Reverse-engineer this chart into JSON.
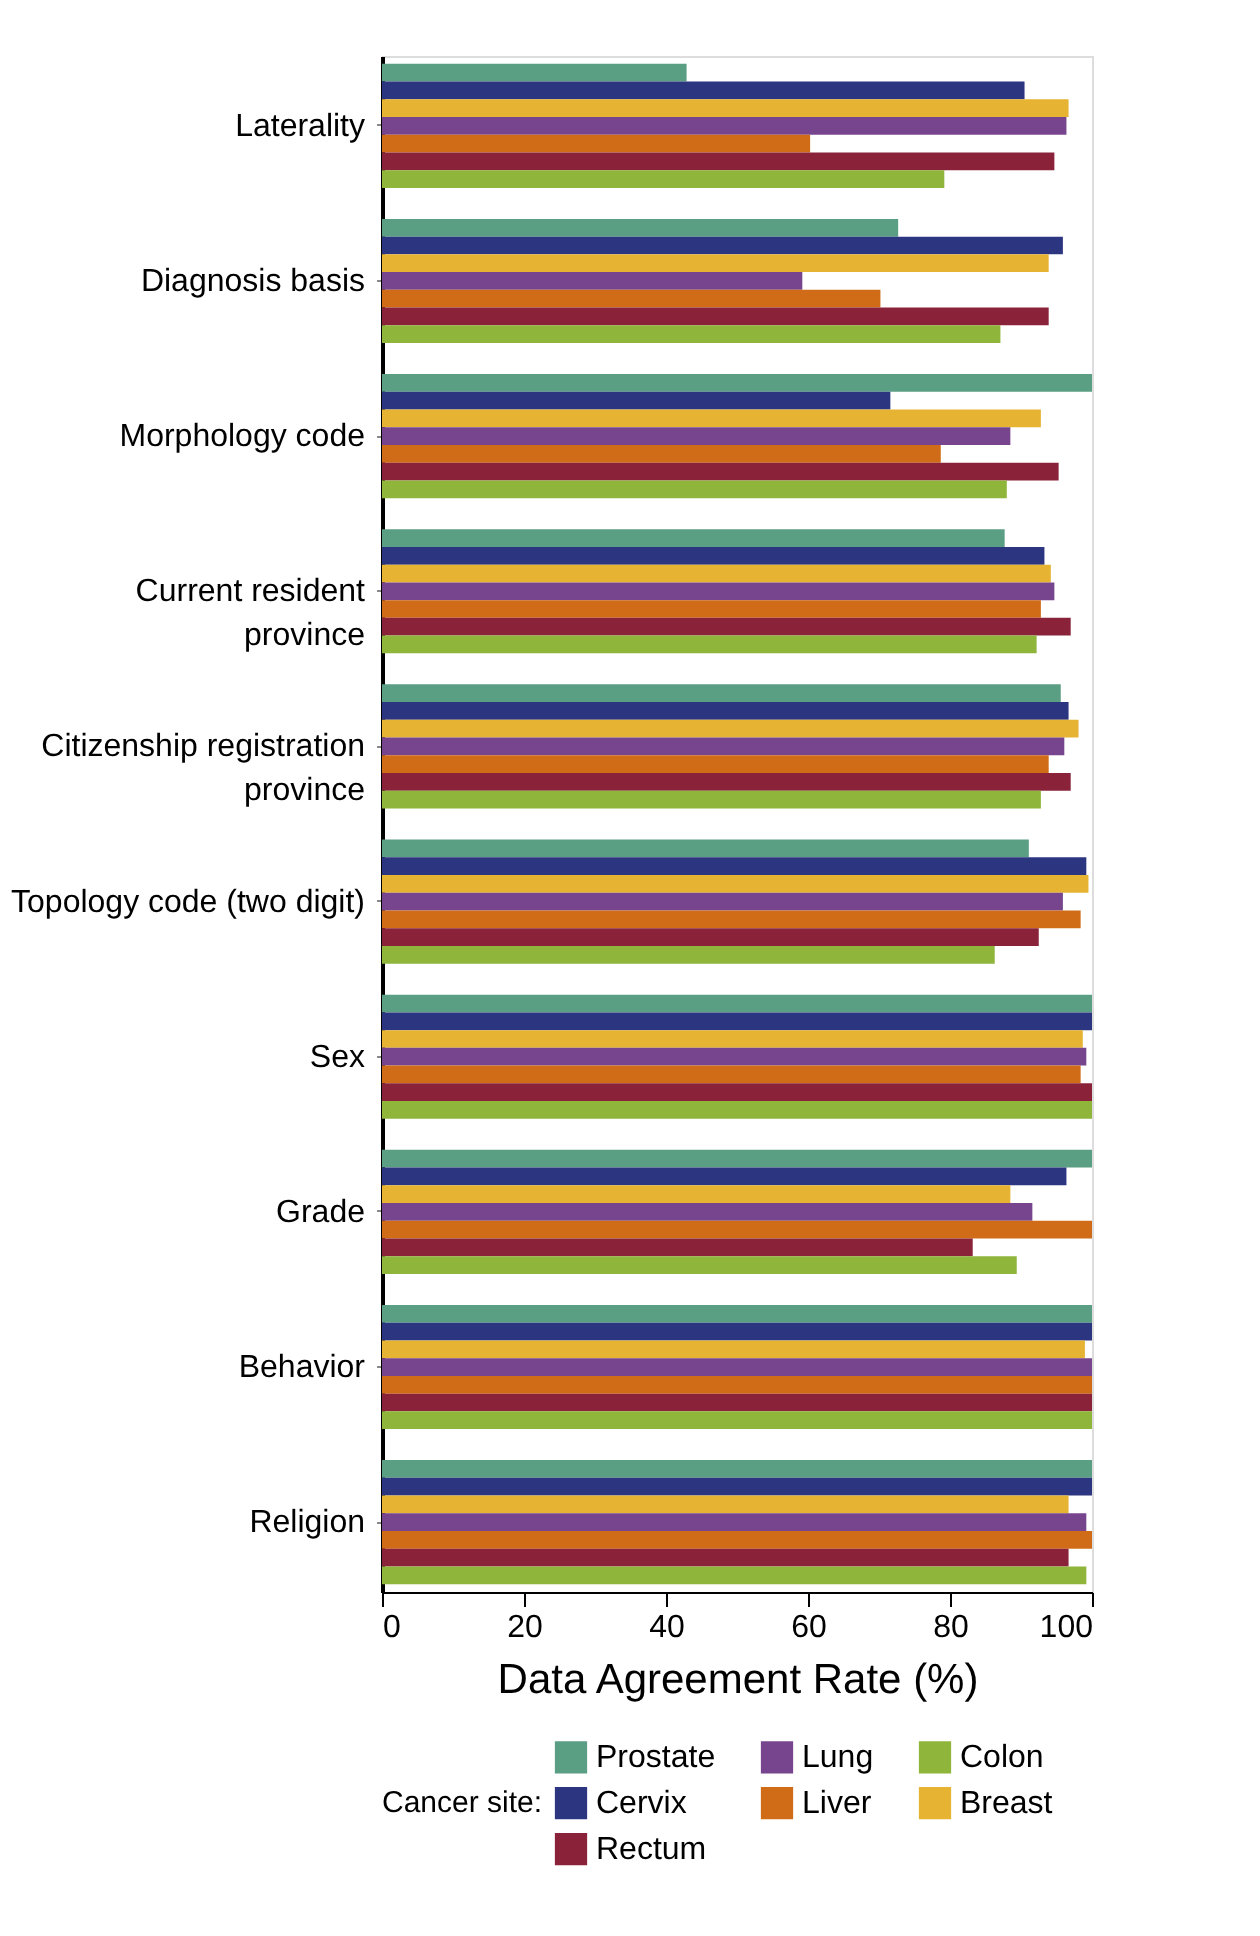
{
  "chart_data": {
    "type": "bar",
    "orientation": "horizontal",
    "xlabel": "Data Agreement Rate (%)",
    "legend_title": "Cancer site:",
    "legend": "bottom",
    "grid": false,
    "categories": [
      "Laterality",
      "Diagnosis basis",
      "Morphology code",
      "Current resident\nprovince",
      "Citizenship registration\nprovince",
      "Topology code (two digit)",
      "Sex",
      "Grade",
      "Behavior",
      "Religion"
    ],
    "xlim": [
      0,
      100
    ],
    "xticks": [
      0,
      20,
      40,
      60,
      80,
      100
    ],
    "series": [
      {
        "name": "Prostate",
        "color": "#5a9e84",
        "values": [
          42.9,
          72.7,
          100,
          87.7,
          95.6,
          91.1,
          100,
          100,
          100,
          100
        ]
      },
      {
        "name": "Cervix",
        "color": "#2c3580",
        "values": [
          90.5,
          95.9,
          71.6,
          93.3,
          96.7,
          99.2,
          100,
          96.4,
          100,
          100
        ]
      },
      {
        "name": "Breast",
        "color": "#e6b333",
        "values": [
          96.7,
          93.9,
          92.8,
          94.2,
          98.1,
          99.5,
          98.7,
          88.5,
          99.0,
          96.7
        ]
      },
      {
        "name": "Lung",
        "color": "#77448e",
        "values": [
          96.4,
          59.2,
          88.5,
          94.7,
          96.1,
          95.9,
          99.2,
          91.6,
          100,
          99.2
        ]
      },
      {
        "name": "Liver",
        "color": "#d06c17",
        "values": [
          60.3,
          70.2,
          78.7,
          92.8,
          93.9,
          98.4,
          98.4,
          100,
          100,
          100
        ]
      },
      {
        "name": "Rectum",
        "color": "#8a2339",
        "values": [
          94.7,
          93.9,
          95.3,
          97.0,
          97.0,
          92.5,
          100,
          83.2,
          100,
          96.7
        ]
      },
      {
        "name": "Colon",
        "color": "#8fb53a",
        "values": [
          79.2,
          87.1,
          88.0,
          92.2,
          92.8,
          86.3,
          100,
          89.4,
          100,
          99.2
        ]
      }
    ]
  }
}
